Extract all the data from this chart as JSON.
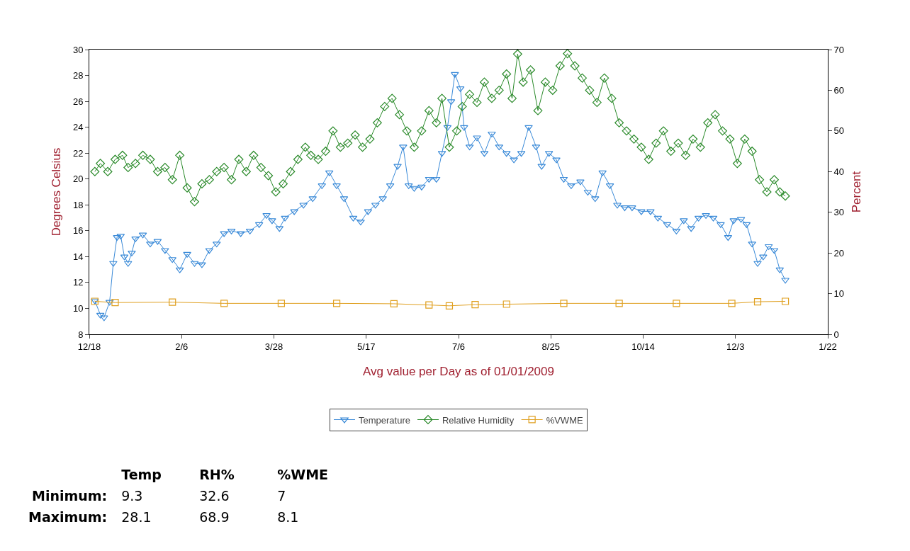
{
  "chart_data": [
    {
      "type": "line",
      "xlabel": "Avg value per Day as of 01/01/2009",
      "ylabel": "Degrees Celsius",
      "y2label": "Percent",
      "xlim": [
        "2008-12-18",
        "2010-01-22"
      ],
      "xticks": [
        {
          "value": "2008-12-18",
          "label": "12/18"
        },
        {
          "value": "2009-02-06",
          "label": "2/6"
        },
        {
          "value": "2009-03-28",
          "label": "3/28"
        },
        {
          "value": "2009-05-17",
          "label": "5/17"
        },
        {
          "value": "2009-07-06",
          "label": "7/6"
        },
        {
          "value": "2009-08-25",
          "label": "8/25"
        },
        {
          "value": "2009-10-14",
          "label": "10/14"
        },
        {
          "value": "2009-12-03",
          "label": "12/3"
        },
        {
          "value": "2010-01-22",
          "label": "1/22"
        }
      ],
      "ylim": [
        8,
        30
      ],
      "yticks": [
        8,
        10,
        12,
        14,
        16,
        18,
        20,
        22,
        24,
        26,
        28,
        30
      ],
      "y2lim": [
        0,
        70
      ],
      "y2ticks": [
        0,
        10,
        20,
        30,
        40,
        50,
        60,
        70
      ],
      "grid": false,
      "legend": "bottom",
      "series": [
        {
          "name": "Temperature",
          "color": "#3a8ad8",
          "marker": "triangle",
          "x": [
            "2008-12-21",
            "2008-12-24",
            "2008-12-26",
            "2008-12-29",
            "2008-12-31",
            "2009-01-02",
            "2009-01-04",
            "2009-01-06",
            "2009-01-08",
            "2009-01-10",
            "2009-01-12",
            "2009-01-16",
            "2009-01-20",
            "2009-01-24",
            "2009-01-28",
            "2009-02-01",
            "2009-02-05",
            "2009-02-09",
            "2009-02-13",
            "2009-02-17",
            "2009-02-21",
            "2009-02-25",
            "2009-03-01",
            "2009-03-05",
            "2009-03-10",
            "2009-03-15",
            "2009-03-20",
            "2009-03-24",
            "2009-03-27",
            "2009-03-31",
            "2009-04-03",
            "2009-04-08",
            "2009-04-13",
            "2009-04-18",
            "2009-04-23",
            "2009-04-27",
            "2009-05-01",
            "2009-05-05",
            "2009-05-10",
            "2009-05-14",
            "2009-05-18",
            "2009-05-22",
            "2009-05-26",
            "2009-05-30",
            "2009-06-03",
            "2009-06-06",
            "2009-06-09",
            "2009-06-12",
            "2009-06-16",
            "2009-06-20",
            "2009-06-24",
            "2009-06-27",
            "2009-06-30",
            "2009-07-02",
            "2009-07-04",
            "2009-07-07",
            "2009-07-09",
            "2009-07-12",
            "2009-07-16",
            "2009-07-20",
            "2009-07-24",
            "2009-07-28",
            "2009-08-01",
            "2009-08-05",
            "2009-08-09",
            "2009-08-13",
            "2009-08-17",
            "2009-08-20",
            "2009-08-24",
            "2009-08-28",
            "2009-09-01",
            "2009-09-05",
            "2009-09-10",
            "2009-09-14",
            "2009-09-18",
            "2009-09-22",
            "2009-09-26",
            "2009-09-30",
            "2009-10-04",
            "2009-10-08",
            "2009-10-13",
            "2009-10-18",
            "2009-10-22",
            "2009-10-27",
            "2009-11-01",
            "2009-11-05",
            "2009-11-09",
            "2009-11-13",
            "2009-11-17",
            "2009-11-21",
            "2009-11-25",
            "2009-11-29",
            "2009-12-02",
            "2009-12-06",
            "2009-12-09",
            "2009-12-12",
            "2009-12-15",
            "2009-12-18",
            "2009-12-21",
            "2009-12-24",
            "2009-12-27",
            "2009-12-30"
          ],
          "values": [
            10.6,
            9.5,
            9.3,
            10.5,
            13.5,
            15.5,
            15.6,
            14.0,
            13.5,
            14.3,
            15.4,
            15.7,
            15.0,
            15.2,
            14.5,
            13.8,
            13.0,
            14.2,
            13.5,
            13.4,
            14.5,
            15.0,
            15.8,
            16.0,
            15.8,
            16.0,
            16.5,
            17.2,
            16.8,
            16.2,
            17.0,
            17.5,
            18.0,
            18.5,
            19.5,
            20.5,
            19.5,
            18.5,
            17.0,
            16.7,
            17.5,
            18.0,
            18.5,
            19.5,
            21.0,
            22.5,
            19.5,
            19.3,
            19.4,
            20.0,
            20.0,
            22.0,
            24.0,
            26.0,
            28.1,
            27.0,
            24.0,
            22.5,
            23.2,
            22.0,
            23.5,
            22.5,
            22.0,
            21.5,
            22.0,
            24.0,
            22.5,
            21.0,
            22.0,
            21.5,
            20.0,
            19.5,
            19.8,
            19.0,
            18.5,
            20.5,
            19.5,
            18.0,
            17.8,
            17.8,
            17.5,
            17.5,
            17.0,
            16.5,
            16.0,
            16.8,
            16.2,
            17.0,
            17.2,
            17.0,
            16.5,
            15.5,
            16.8,
            16.9,
            16.5,
            15.0,
            13.5,
            14.0,
            14.8,
            14.5,
            13.0,
            12.2
          ]
        },
        {
          "name": "Relative Humidity",
          "color": "#2a8a2a",
          "marker": "diamond",
          "axis": "y2",
          "x": [
            "2008-12-21",
            "2008-12-24",
            "2008-12-28",
            "2009-01-01",
            "2009-01-05",
            "2009-01-08",
            "2009-01-12",
            "2009-01-16",
            "2009-01-20",
            "2009-01-24",
            "2009-01-28",
            "2009-02-01",
            "2009-02-05",
            "2009-02-09",
            "2009-02-13",
            "2009-02-17",
            "2009-02-21",
            "2009-02-25",
            "2009-03-01",
            "2009-03-05",
            "2009-03-09",
            "2009-03-13",
            "2009-03-17",
            "2009-03-21",
            "2009-03-25",
            "2009-03-29",
            "2009-04-02",
            "2009-04-06",
            "2009-04-10",
            "2009-04-14",
            "2009-04-17",
            "2009-04-21",
            "2009-04-25",
            "2009-04-29",
            "2009-05-03",
            "2009-05-07",
            "2009-05-11",
            "2009-05-15",
            "2009-05-19",
            "2009-05-23",
            "2009-05-27",
            "2009-05-31",
            "2009-06-04",
            "2009-06-08",
            "2009-06-12",
            "2009-06-16",
            "2009-06-20",
            "2009-06-24",
            "2009-06-27",
            "2009-07-01",
            "2009-07-05",
            "2009-07-08",
            "2009-07-12",
            "2009-07-16",
            "2009-07-20",
            "2009-07-24",
            "2009-07-28",
            "2009-08-01",
            "2009-08-04",
            "2009-08-07",
            "2009-08-10",
            "2009-08-14",
            "2009-08-18",
            "2009-08-22",
            "2009-08-26",
            "2009-08-30",
            "2009-09-03",
            "2009-09-07",
            "2009-09-11",
            "2009-09-15",
            "2009-09-19",
            "2009-09-23",
            "2009-09-27",
            "2009-10-01",
            "2009-10-05",
            "2009-10-09",
            "2009-10-13",
            "2009-10-17",
            "2009-10-21",
            "2009-10-25",
            "2009-10-29",
            "2009-11-02",
            "2009-11-06",
            "2009-11-10",
            "2009-11-14",
            "2009-11-18",
            "2009-11-22",
            "2009-11-26",
            "2009-11-30",
            "2009-12-04",
            "2009-12-08",
            "2009-12-12",
            "2009-12-16",
            "2009-12-20",
            "2009-12-24",
            "2009-12-27",
            "2009-12-30"
          ],
          "values": [
            40,
            42,
            40,
            43,
            44,
            41,
            42,
            44,
            43,
            40,
            41,
            38,
            44,
            36,
            32.6,
            37,
            38,
            40,
            41,
            38,
            43,
            40,
            44,
            41,
            39,
            35,
            37,
            40,
            43,
            46,
            44,
            43,
            45,
            50,
            46,
            47,
            49,
            46,
            48,
            52,
            56,
            58,
            54,
            50,
            46,
            50,
            55,
            52,
            58,
            46,
            50,
            56,
            59,
            57,
            62,
            58,
            60,
            64,
            58,
            68.9,
            62,
            65,
            55,
            62,
            60,
            66,
            69,
            66,
            63,
            60,
            57,
            63,
            58,
            52,
            50,
            48,
            46,
            43,
            47,
            50,
            45,
            47,
            44,
            48,
            46,
            52,
            54,
            50,
            48,
            42,
            48,
            45,
            38,
            35,
            38,
            35,
            34
          ]
        },
        {
          "name": "%VWME",
          "color": "#e0a020",
          "marker": "square",
          "axis": "y2",
          "x": [
            "2008-12-21",
            "2009-01-01",
            "2009-02-01",
            "2009-03-01",
            "2009-04-01",
            "2009-05-01",
            "2009-06-01",
            "2009-06-20",
            "2009-07-01",
            "2009-07-15",
            "2009-08-01",
            "2009-09-01",
            "2009-10-01",
            "2009-11-01",
            "2009-12-01",
            "2009-12-15",
            "2009-12-30"
          ],
          "values": [
            8.1,
            7.8,
            7.9,
            7.6,
            7.6,
            7.6,
            7.5,
            7.2,
            7.0,
            7.3,
            7.4,
            7.6,
            7.6,
            7.6,
            7.6,
            8.0,
            8.1
          ]
        }
      ]
    },
    {
      "type": "other",
      "categories": [
        "Temp",
        "RH%",
        "%WME"
      ],
      "y_categories": [
        "Minimum:",
        "Maximum:"
      ],
      "cell_labels": [
        [
          "9.3",
          "32.6",
          "7"
        ],
        [
          "28.1",
          "68.9",
          "8.1"
        ]
      ]
    }
  ]
}
